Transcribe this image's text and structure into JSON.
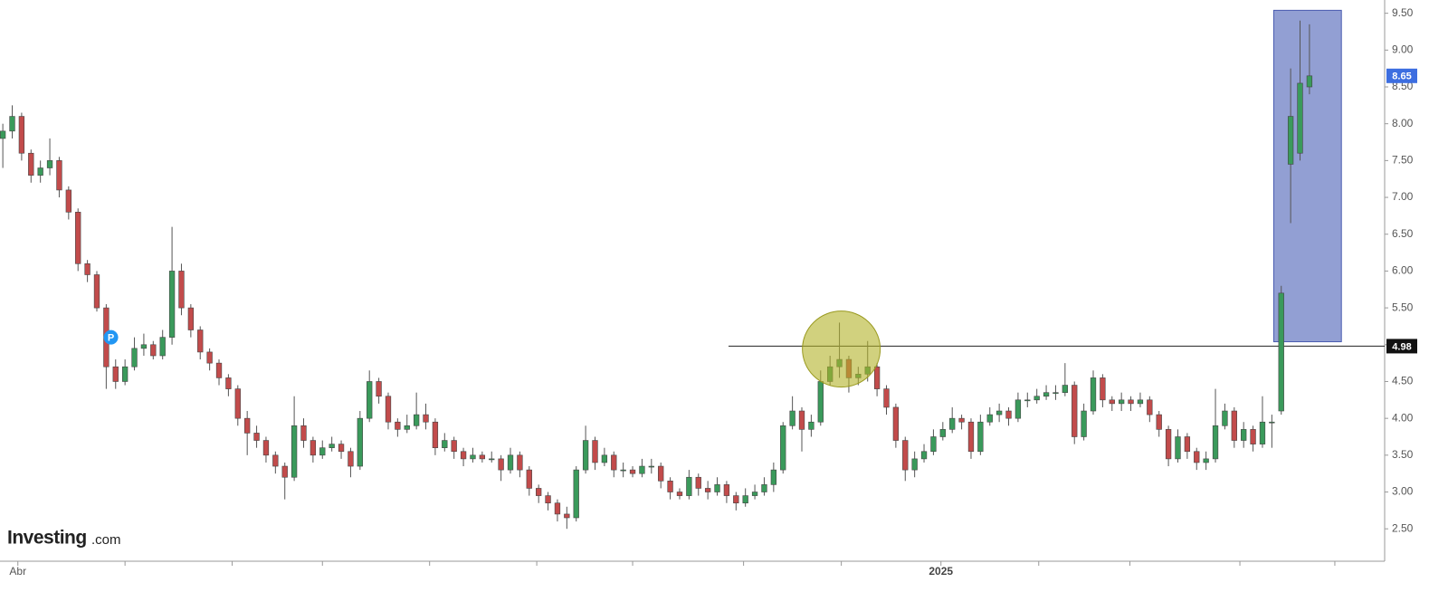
{
  "chart_data": {
    "type": "candlestick",
    "xlim": [
      -0.3,
      147
    ],
    "ylim": [
      2.06,
      9.68
    ],
    "xticks": [
      {
        "value": 1.6,
        "label": "Abr"
      },
      {
        "value": 13,
        "label": null
      },
      {
        "value": 24.4,
        "label": null
      },
      {
        "value": 34,
        "label": null
      },
      {
        "value": 45.4,
        "label": null
      },
      {
        "value": 56.8,
        "label": null
      },
      {
        "value": 67,
        "label": null
      },
      {
        "value": 78.8,
        "label": null
      },
      {
        "value": 89.2,
        "label": null
      },
      {
        "value": 99.8,
        "label": "2025"
      },
      {
        "value": 110.2,
        "label": null
      },
      {
        "value": 119.9,
        "label": null
      },
      {
        "value": 131.6,
        "label": null
      },
      {
        "value": 141.7,
        "label": null
      }
    ],
    "yticks": [
      {
        "value": 2.5,
        "label": "2.50"
      },
      {
        "value": 3,
        "label": "3.00"
      },
      {
        "value": 3.5,
        "label": "3.50"
      },
      {
        "value": 4,
        "label": "4.00"
      },
      {
        "value": 4.5,
        "label": "4.50"
      },
      {
        "value": 5,
        "label": "5.00"
      },
      {
        "value": 5.5,
        "label": "5.50"
      },
      {
        "value": 6,
        "label": "6.00"
      },
      {
        "value": 6.5,
        "label": "6.50"
      },
      {
        "value": 7,
        "label": "7.00"
      },
      {
        "value": 7.5,
        "label": "7.50"
      },
      {
        "value": 8,
        "label": "8.00"
      },
      {
        "value": 8.5,
        "label": "8.50"
      },
      {
        "value": 9,
        "label": "9.00"
      },
      {
        "value": 9.5,
        "label": "9.50"
      }
    ],
    "series": [
      {
        "up_color": "#3a9a5b",
        "down_color": "#c24b4b",
        "open": [
          7.8,
          7.9,
          8.1,
          7.6,
          7.3,
          7.4,
          7.5,
          7.1,
          6.8,
          6.1,
          5.95,
          5.5,
          4.7,
          4.5,
          4.7,
          4.95,
          5.0,
          4.85,
          5.1,
          6.0,
          5.5,
          5.2,
          4.9,
          4.75,
          4.55,
          4.4,
          4.0,
          3.8,
          3.7,
          3.5,
          3.35,
          3.2,
          3.9,
          3.7,
          3.5,
          3.6,
          3.65,
          3.55,
          3.35,
          4.0,
          4.5,
          4.3,
          3.95,
          3.85,
          3.9,
          4.05,
          3.95,
          3.6,
          3.7,
          3.55,
          3.45,
          3.5,
          3.45,
          3.45,
          3.3,
          3.5,
          3.3,
          3.05,
          2.95,
          2.85,
          2.7,
          2.65,
          3.3,
          3.7,
          3.4,
          3.5,
          3.3,
          3.3,
          3.25,
          3.35,
          3.35,
          3.15,
          3.0,
          2.95,
          3.2,
          3.05,
          3.0,
          3.1,
          2.95,
          2.85,
          2.95,
          3.0,
          3.1,
          3.3,
          3.9,
          4.1,
          3.85,
          3.95,
          4.5,
          4.7,
          4.8,
          4.55,
          4.6,
          4.7,
          4.4,
          4.15,
          3.7,
          3.3,
          3.45,
          3.55,
          3.75,
          3.85,
          4.0,
          3.95,
          3.55,
          3.95,
          4.05,
          4.1,
          4.0,
          4.25,
          4.25,
          4.3,
          4.35,
          4.35,
          4.45,
          3.75,
          4.1,
          4.55,
          4.25,
          4.2,
          4.25,
          4.2,
          4.25,
          4.05,
          3.85,
          3.45,
          3.75,
          3.55,
          3.4,
          3.45,
          3.9,
          4.1,
          3.7,
          3.85,
          3.65,
          3.95,
          4.1,
          7.45,
          7.6,
          8.5
        ],
        "high": [
          8.0,
          8.25,
          8.15,
          7.65,
          7.5,
          7.8,
          7.55,
          7.15,
          6.85,
          6.15,
          6.0,
          5.55,
          4.8,
          4.8,
          5.1,
          5.15,
          5.05,
          5.2,
          6.6,
          6.1,
          5.55,
          5.25,
          4.95,
          4.8,
          4.6,
          4.45,
          4.1,
          3.9,
          3.75,
          3.55,
          3.4,
          4.3,
          4.0,
          3.75,
          3.7,
          3.75,
          3.7,
          3.6,
          4.1,
          4.65,
          4.55,
          4.35,
          4.0,
          4.05,
          4.35,
          4.2,
          4.0,
          3.8,
          3.75,
          3.6,
          3.6,
          3.55,
          3.55,
          3.5,
          3.6,
          3.55,
          3.35,
          3.1,
          3.0,
          2.9,
          2.8,
          3.35,
          3.9,
          3.75,
          3.6,
          3.55,
          3.4,
          3.35,
          3.45,
          3.45,
          3.4,
          3.2,
          3.05,
          3.3,
          3.25,
          3.15,
          3.2,
          3.15,
          3.0,
          3.05,
          3.1,
          3.2,
          3.4,
          3.95,
          4.3,
          4.15,
          4.05,
          4.65,
          4.85,
          5.3,
          4.85,
          4.7,
          5.05,
          4.75,
          4.45,
          4.2,
          3.75,
          3.55,
          3.65,
          3.85,
          3.95,
          4.15,
          4.05,
          4.0,
          4.05,
          4.15,
          4.2,
          4.15,
          4.35,
          4.35,
          4.4,
          4.45,
          4.45,
          4.75,
          4.5,
          4.2,
          4.65,
          4.6,
          4.3,
          4.35,
          4.3,
          4.35,
          4.3,
          4.1,
          3.9,
          3.85,
          3.8,
          3.6,
          3.55,
          4.4,
          4.2,
          4.15,
          3.95,
          3.9,
          4.3,
          4.05,
          5.8,
          8.75,
          9.4,
          9.35
        ],
        "low": [
          7.4,
          7.8,
          7.5,
          7.2,
          7.2,
          7.3,
          7.0,
          6.7,
          6.0,
          5.85,
          5.45,
          4.4,
          4.4,
          4.45,
          4.65,
          4.85,
          4.8,
          4.8,
          5.0,
          5.4,
          5.1,
          4.8,
          4.65,
          4.45,
          4.3,
          3.9,
          3.5,
          3.6,
          3.4,
          3.25,
          2.9,
          3.15,
          3.6,
          3.4,
          3.45,
          3.55,
          3.45,
          3.2,
          3.3,
          3.95,
          4.2,
          3.85,
          3.75,
          3.8,
          3.85,
          3.85,
          3.5,
          3.55,
          3.45,
          3.35,
          3.4,
          3.4,
          3.4,
          3.15,
          3.25,
          3.2,
          2.95,
          2.85,
          2.75,
          2.6,
          2.5,
          2.6,
          3.25,
          3.3,
          3.35,
          3.2,
          3.2,
          3.2,
          3.2,
          3.25,
          3.05,
          2.9,
          2.9,
          2.9,
          2.95,
          2.9,
          2.95,
          2.85,
          2.75,
          2.8,
          2.9,
          2.95,
          3.0,
          3.25,
          3.85,
          3.55,
          3.75,
          3.9,
          4.45,
          4.55,
          4.35,
          4.45,
          4.5,
          4.3,
          4.05,
          3.6,
          3.15,
          3.2,
          3.4,
          3.5,
          3.7,
          3.8,
          3.85,
          3.45,
          3.5,
          3.9,
          3.95,
          3.9,
          3.95,
          4.15,
          4.2,
          4.25,
          4.25,
          4.3,
          3.65,
          3.7,
          4.05,
          4.15,
          4.1,
          4.1,
          4.1,
          4.15,
          3.95,
          3.75,
          3.35,
          3.4,
          3.45,
          3.3,
          3.3,
          3.4,
          3.85,
          3.6,
          3.6,
          3.55,
          3.6,
          3.6,
          4.05,
          6.65,
          7.5,
          8.4
        ],
        "close": [
          7.9,
          8.1,
          7.6,
          7.3,
          7.4,
          7.5,
          7.1,
          6.8,
          6.1,
          5.95,
          5.5,
          4.7,
          4.5,
          4.7,
          4.95,
          5.0,
          4.85,
          5.1,
          6.0,
          5.5,
          5.2,
          4.9,
          4.75,
          4.55,
          4.4,
          4.0,
          3.8,
          3.7,
          3.5,
          3.35,
          3.2,
          3.9,
          3.7,
          3.5,
          3.6,
          3.65,
          3.55,
          3.35,
          4.0,
          4.5,
          4.3,
          3.95,
          3.85,
          3.9,
          4.05,
          3.95,
          3.6,
          3.7,
          3.55,
          3.45,
          3.5,
          3.45,
          3.45,
          3.3,
          3.5,
          3.3,
          3.05,
          2.95,
          2.85,
          2.7,
          2.65,
          3.3,
          3.7,
          3.4,
          3.5,
          3.3,
          3.3,
          3.25,
          3.35,
          3.35,
          3.15,
          3.0,
          2.95,
          3.2,
          3.05,
          3.0,
          3.1,
          2.95,
          2.85,
          2.95,
          3.0,
          3.1,
          3.3,
          3.9,
          4.1,
          3.85,
          3.95,
          4.5,
          4.7,
          4.8,
          4.55,
          4.6,
          4.7,
          4.4,
          4.15,
          3.7,
          3.3,
          3.45,
          3.55,
          3.75,
          3.85,
          4.0,
          3.95,
          3.55,
          3.95,
          4.05,
          4.1,
          4.0,
          4.25,
          4.25,
          4.3,
          4.35,
          4.35,
          4.45,
          3.75,
          4.1,
          4.55,
          4.25,
          4.2,
          4.25,
          4.2,
          4.25,
          4.05,
          3.85,
          3.45,
          3.75,
          3.55,
          3.4,
          3.45,
          3.9,
          4.1,
          3.7,
          3.85,
          3.65,
          3.95,
          3.95,
          5.7,
          8.1,
          8.55,
          8.65
        ]
      }
    ],
    "annotations": {
      "hline": {
        "value": 4.98,
        "start": 77.2
      },
      "highlight_box": {
        "x": [
          135.2,
          142.4
        ],
        "y": [
          5.04,
          9.54
        ]
      },
      "circle": {
        "x": 89.2,
        "y": 4.94
      },
      "marker": {
        "x": 11.5,
        "y": 5.1,
        "label": "P"
      }
    }
  },
  "watermark": {
    "brand": "Investing",
    "suffix": ".com"
  }
}
